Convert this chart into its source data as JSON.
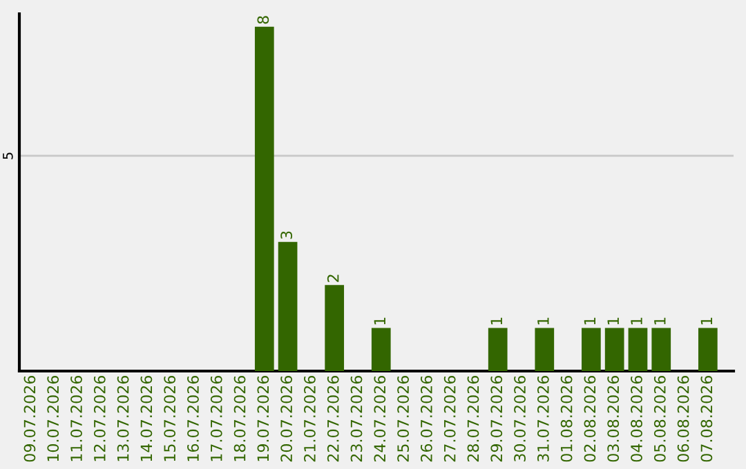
{
  "chart_data": {
    "type": "bar",
    "categories": [
      "09.07.2026",
      "10.07.2026",
      "11.07.2026",
      "12.07.2026",
      "13.07.2026",
      "14.07.2026",
      "15.07.2026",
      "16.07.2026",
      "17.07.2026",
      "18.07.2026",
      "19.07.2026",
      "20.07.2026",
      "21.07.2026",
      "22.07.2026",
      "23.07.2026",
      "24.07.2026",
      "25.07.2026",
      "26.07.2026",
      "27.07.2026",
      "28.07.2026",
      "29.07.2026",
      "30.07.2026",
      "31.07.2026",
      "01.08.2026",
      "02.08.2026",
      "03.08.2026",
      "04.08.2026",
      "05.08.2026",
      "06.08.2026",
      "07.08.2026"
    ],
    "values": [
      0,
      0,
      0,
      0,
      0,
      0,
      0,
      0,
      0,
      0,
      8,
      3,
      0,
      2,
      0,
      1,
      0,
      0,
      0,
      0,
      1,
      0,
      1,
      0,
      1,
      1,
      1,
      1,
      0,
      1
    ],
    "value_labels": [
      null,
      null,
      null,
      null,
      null,
      null,
      null,
      null,
      null,
      null,
      "8",
      "3",
      null,
      "2",
      null,
      "1",
      null,
      null,
      null,
      null,
      "1",
      null,
      "1",
      null,
      "1",
      "1",
      "1",
      "1",
      null,
      "1"
    ],
    "color": "#336600",
    "ylim": [
      0,
      8.3
    ],
    "yticks": [
      5
    ],
    "grid": "y",
    "legend": false
  }
}
